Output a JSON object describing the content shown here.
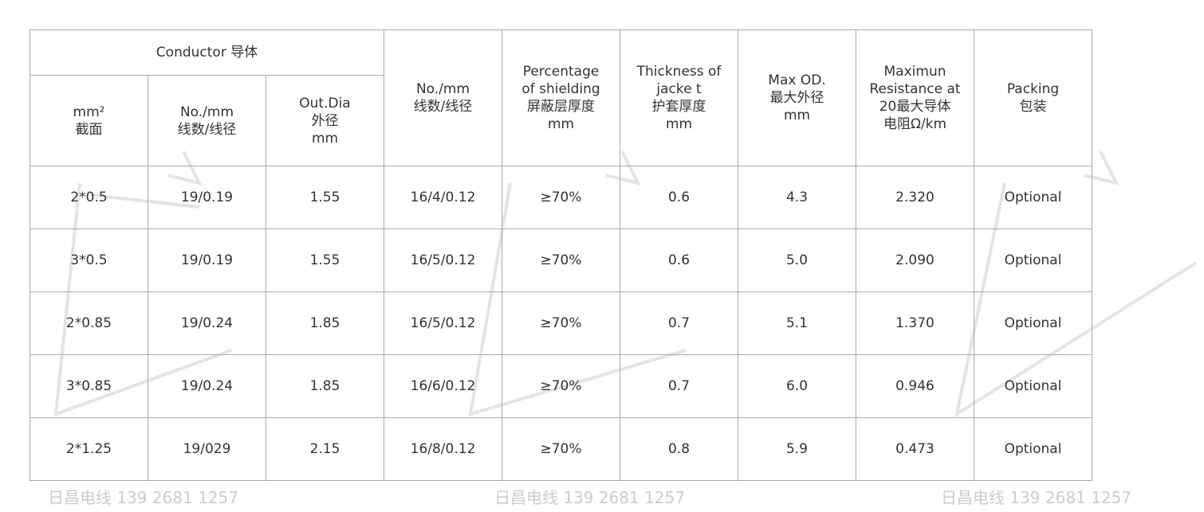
{
  "watermark": {
    "text": "日昌电线 139 2681 1257"
  },
  "header": {
    "group": "Conductor 导体",
    "sub": [
      "mm²\n截面",
      "No./mm\n线数/线径",
      "Out.Dia\n外径\nmm"
    ],
    "cols": [
      "No./mm\n线数/线径",
      "Percentage\nof shielding\n屏蔽层厚度\nmm",
      "Thickness of\njacke t\n护套厚度\nmm",
      "Max OD.\n最大外径\nmm",
      "Maximun\nResistance at\n20最大导体\n电阻Ω/km",
      "Packing\n包装"
    ]
  },
  "rows": [
    [
      "2*0.5",
      "19/0.19",
      "1.55",
      "16/4/0.12",
      "≥70%",
      "0.6",
      "4.3",
      "2.320",
      "Optional"
    ],
    [
      "3*0.5",
      "19/0.19",
      "1.55",
      "16/5/0.12",
      "≥70%",
      "0.6",
      "5.0",
      "2.090",
      "Optional"
    ],
    [
      "2*0.85",
      "19/0.24",
      "1.85",
      "16/5/0.12",
      "≥70%",
      "0.7",
      "5.1",
      "1.370",
      "Optional"
    ],
    [
      "3*0.85",
      "19/0.24",
      "1.85",
      "16/6/0.12",
      "≥70%",
      "0.7",
      "6.0",
      "0.946",
      "Optional"
    ],
    [
      "2*1.25",
      "19/029",
      "2.15",
      "16/8/0.12",
      "≥70%",
      "0.8",
      "5.9",
      "0.473",
      "Optional"
    ]
  ]
}
